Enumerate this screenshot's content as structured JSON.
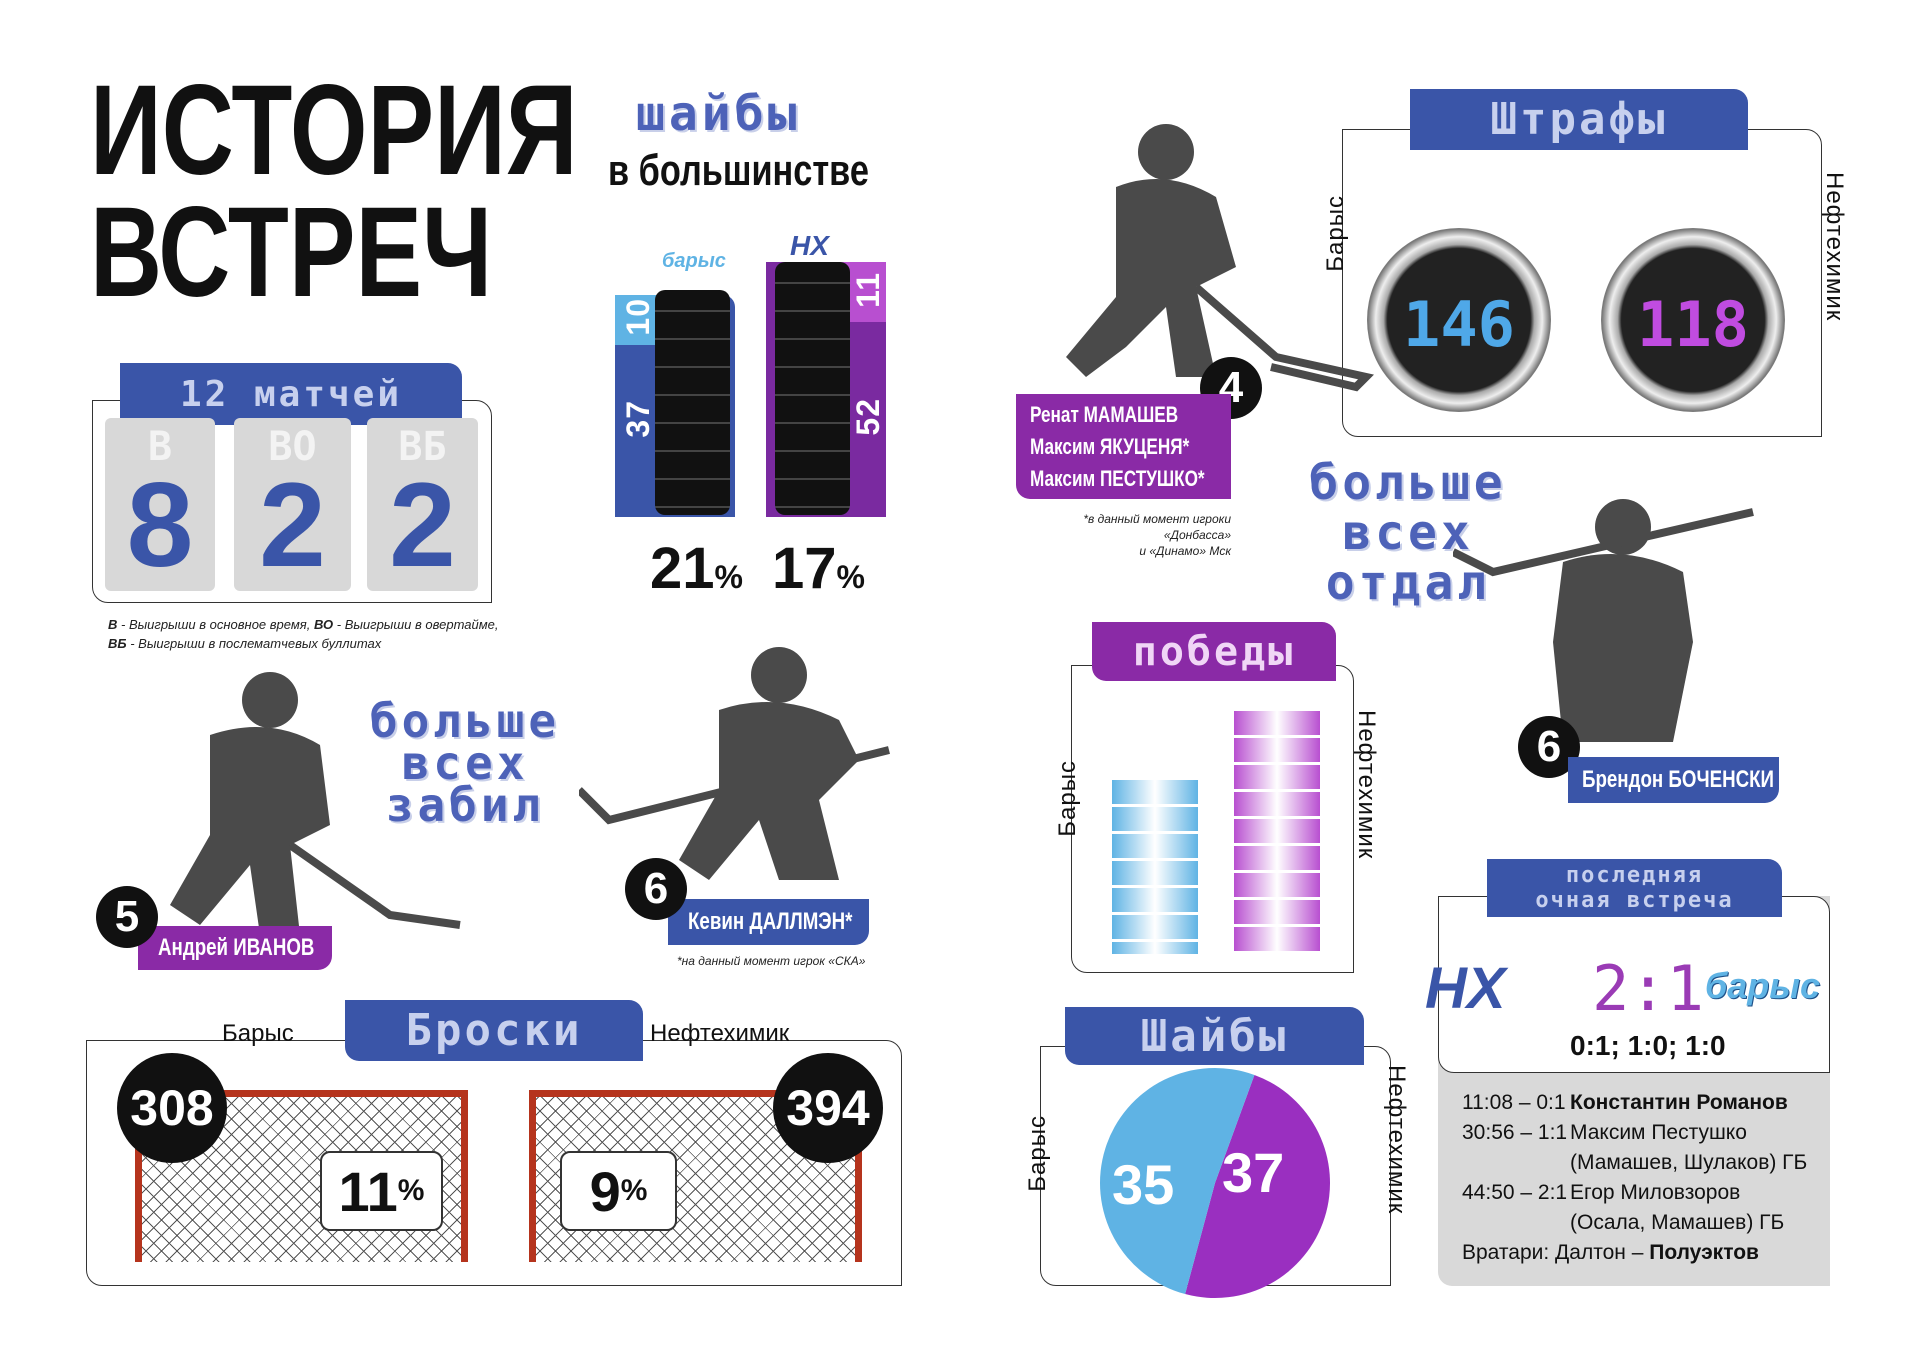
{
  "title": {
    "line1": "ИСТОРИЯ",
    "line2": "ВСТРЕЧ"
  },
  "teams": {
    "barys": "Барыс",
    "neftekhimik": "Нефтехимик",
    "nh_logo": "НХ",
    "barys_logo": "барыс"
  },
  "colors": {
    "blue": "#3a55a8",
    "purple": "#8a2aa6",
    "light_blue": "#5fb3e4",
    "magenta": "#b84fd0"
  },
  "matches": {
    "header": "12 матчей",
    "tiles": [
      {
        "key": "В",
        "value": "8"
      },
      {
        "key": "ВО",
        "value": "2"
      },
      {
        "key": "ВБ",
        "value": "2"
      }
    ],
    "legend_line1_b1": "В",
    "legend_line1_t1": " - Выигрыши в основное время, ",
    "legend_line1_b2": "ВО",
    "legend_line1_t2": " - Выигрыши в овертайме,",
    "legend_line2_b": "ВБ",
    "legend_line2_t": " - Выигрыши в послематчевых буллитах"
  },
  "powerplay": {
    "title": "шайбы",
    "subtitle": "в большинстве",
    "barys": {
      "goals": "10",
      "attempts": "37",
      "pct": "21",
      "unit": "%"
    },
    "neftekhimik": {
      "goals": "11",
      "attempts": "52",
      "pct": "17",
      "unit": "%"
    }
  },
  "penalties": {
    "title": "Штрафы",
    "barys": "146",
    "neftekhimik": "118"
  },
  "most_penalized": {
    "title1": "больше",
    "title2": "всех",
    "title3": "отдал",
    "nh": {
      "number": "4",
      "players": [
        "Ренат МАМАШЕВ",
        "Максим ЯКУЦЕНЯ*",
        "Максим ПЕСТУШКО*"
      ],
      "note1": "*в данный момент игроки «Донбасса»",
      "note2": "и «Динамо» Мск"
    },
    "barys": {
      "number": "6",
      "player": "Брендон БОЧЕНСКИ"
    }
  },
  "top_scorers": {
    "title1": "больше",
    "title2": "всех",
    "title3": "забил",
    "nh": {
      "number": "5",
      "player": "Андрей ИВАНОВ"
    },
    "barys": {
      "number": "6",
      "player": "Кевин ДАЛЛМЭН*",
      "note": "*на данный момент игрок «СКА»"
    }
  },
  "shots": {
    "title": "Броски",
    "barys": {
      "shots": "308",
      "pct": "11",
      "unit": "%"
    },
    "neftekhimik": {
      "shots": "394",
      "pct": "9",
      "unit": "%"
    }
  },
  "last_game": {
    "title1": "последняя",
    "title2": "очная встреча",
    "score": "2:1",
    "periods": "0:1; 1:0; 1:0",
    "goals": [
      {
        "time": "11:08 – 0:1",
        "text": "Константин Романов",
        "bold": true
      },
      {
        "time": "30:56 – 1:1",
        "text": "Максим Пестушко"
      },
      {
        "time": "",
        "text": "(Мамашев, Шулаков) ГБ"
      },
      {
        "time": "44:50 – 2:1",
        "text": "Егор Миловзоров"
      },
      {
        "time": "",
        "text": "(Осала, Мамашев) ГБ"
      }
    ],
    "goalies_label": "Вратари: Далтон – ",
    "goalies_bold": "Полуэктов"
  },
  "chart_data": [
    {
      "type": "bar",
      "title": "победы",
      "categories": [
        "Барыс",
        "Нефтехимик"
      ],
      "values": [
        5,
        7
      ],
      "colors": [
        "#5fb3e4",
        "#b84fd0"
      ]
    },
    {
      "type": "pie",
      "title": "Шайбы",
      "categories": [
        "Барыс",
        "Нефтехимик"
      ],
      "values": [
        35,
        37
      ],
      "colors": [
        "#5fb3e4",
        "#9a2fc0"
      ]
    }
  ]
}
